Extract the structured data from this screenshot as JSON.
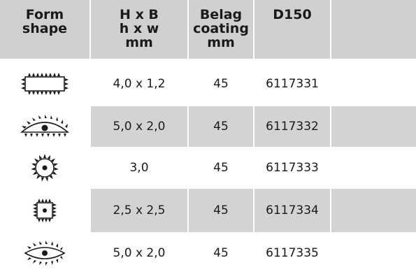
{
  "headers": [
    "Form\nshape",
    "H x B\nh x w\nmm",
    "Belag\ncoating\nmm",
    "D150",
    ""
  ],
  "rows": [
    {
      "shape": "rectangle-icon",
      "size": "4,0 x 1,2",
      "coating": "45",
      "code": "6117331"
    },
    {
      "shape": "half-eye-icon",
      "size": "5,0 x 2,0",
      "coating": "45",
      "code": "6117332"
    },
    {
      "shape": "circle-icon",
      "size": "3,0",
      "coating": "45",
      "code": "6117333"
    },
    {
      "shape": "square-icon",
      "size": "2,5 x 2,5",
      "coating": "45",
      "code": "6117334"
    },
    {
      "shape": "eye-icon",
      "size": "5,0 x 2,0",
      "coating": "45",
      "code": "6117335"
    }
  ],
  "colors": {
    "header_bg": "#d0d0d0",
    "row_alt_bg": "#d3d3d3",
    "text": "#1a1a1a"
  }
}
